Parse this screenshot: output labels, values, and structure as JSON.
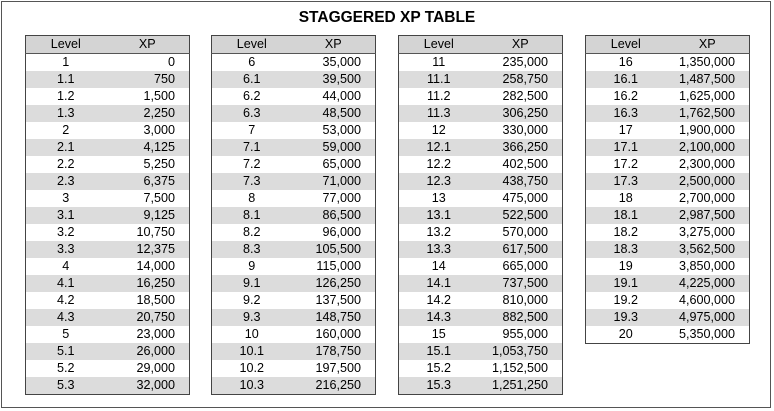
{
  "title": "STAGGERED XP TABLE",
  "headers": {
    "level": "Level",
    "xp": "XP"
  },
  "tables": [
    {
      "rows": [
        [
          "1",
          "0"
        ],
        [
          "1.1",
          "750"
        ],
        [
          "1.2",
          "1,500"
        ],
        [
          "1.3",
          "2,250"
        ],
        [
          "2",
          "3,000"
        ],
        [
          "2.1",
          "4,125"
        ],
        [
          "2.2",
          "5,250"
        ],
        [
          "2.3",
          "6,375"
        ],
        [
          "3",
          "7,500"
        ],
        [
          "3.1",
          "9,125"
        ],
        [
          "3.2",
          "10,750"
        ],
        [
          "3.3",
          "12,375"
        ],
        [
          "4",
          "14,000"
        ],
        [
          "4.1",
          "16,250"
        ],
        [
          "4.2",
          "18,500"
        ],
        [
          "4.3",
          "20,750"
        ],
        [
          "5",
          "23,000"
        ],
        [
          "5.1",
          "26,000"
        ],
        [
          "5.2",
          "29,000"
        ],
        [
          "5.3",
          "32,000"
        ]
      ]
    },
    {
      "rows": [
        [
          "6",
          "35,000"
        ],
        [
          "6.1",
          "39,500"
        ],
        [
          "6.2",
          "44,000"
        ],
        [
          "6.3",
          "48,500"
        ],
        [
          "7",
          "53,000"
        ],
        [
          "7.1",
          "59,000"
        ],
        [
          "7.2",
          "65,000"
        ],
        [
          "7.3",
          "71,000"
        ],
        [
          "8",
          "77,000"
        ],
        [
          "8.1",
          "86,500"
        ],
        [
          "8.2",
          "96,000"
        ],
        [
          "8.3",
          "105,500"
        ],
        [
          "9",
          "115,000"
        ],
        [
          "9.1",
          "126,250"
        ],
        [
          "9.2",
          "137,500"
        ],
        [
          "9.3",
          "148,750"
        ],
        [
          "10",
          "160,000"
        ],
        [
          "10.1",
          "178,750"
        ],
        [
          "10.2",
          "197,500"
        ],
        [
          "10.3",
          "216,250"
        ]
      ]
    },
    {
      "rows": [
        [
          "11",
          "235,000"
        ],
        [
          "11.1",
          "258,750"
        ],
        [
          "11.2",
          "282,500"
        ],
        [
          "11.3",
          "306,250"
        ],
        [
          "12",
          "330,000"
        ],
        [
          "12.1",
          "366,250"
        ],
        [
          "12.2",
          "402,500"
        ],
        [
          "12.3",
          "438,750"
        ],
        [
          "13",
          "475,000"
        ],
        [
          "13.1",
          "522,500"
        ],
        [
          "13.2",
          "570,000"
        ],
        [
          "13.3",
          "617,500"
        ],
        [
          "14",
          "665,000"
        ],
        [
          "14.1",
          "737,500"
        ],
        [
          "14.2",
          "810,000"
        ],
        [
          "14.3",
          "882,500"
        ],
        [
          "15",
          "955,000"
        ],
        [
          "15.1",
          "1,053,750"
        ],
        [
          "15.2",
          "1,152,500"
        ],
        [
          "15.3",
          "1,251,250"
        ]
      ]
    },
    {
      "rows": [
        [
          "16",
          "1,350,000"
        ],
        [
          "16.1",
          "1,487,500"
        ],
        [
          "16.2",
          "1,625,000"
        ],
        [
          "16.3",
          "1,762,500"
        ],
        [
          "17",
          "1,900,000"
        ],
        [
          "17.1",
          "2,100,000"
        ],
        [
          "17.2",
          "2,300,000"
        ],
        [
          "17.3",
          "2,500,000"
        ],
        [
          "18",
          "2,700,000"
        ],
        [
          "18.1",
          "2,987,500"
        ],
        [
          "18.2",
          "3,275,000"
        ],
        [
          "18.3",
          "3,562,500"
        ],
        [
          "19",
          "3,850,000"
        ],
        [
          "19.1",
          "4,225,000"
        ],
        [
          "19.2",
          "4,600,000"
        ],
        [
          "19.3",
          "4,975,000"
        ],
        [
          "20",
          "5,350,000"
        ]
      ]
    }
  ]
}
